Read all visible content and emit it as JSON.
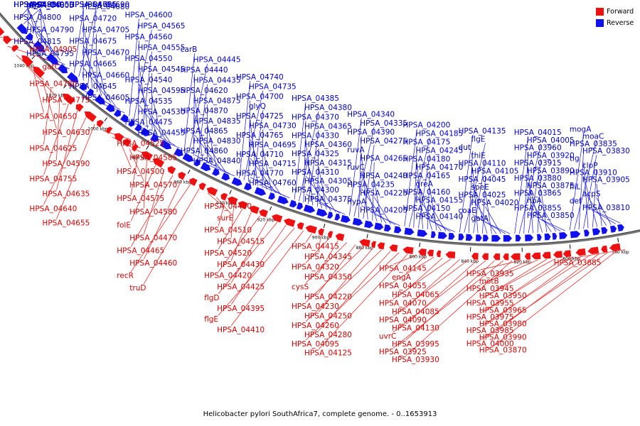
{
  "legend": {
    "forward": {
      "label": "Forward",
      "color": "#ee1111"
    },
    "reverse": {
      "label": "Reverse",
      "color": "#1111ee"
    }
  },
  "caption": "Helicobacter pylori SouthAfrica7, complete genome. - 0..1653913",
  "backbone_color": "#777777",
  "scale_ticks": [
    "1040 kbp",
    "1020 kbp",
    "1000 kbp",
    "980 kbp",
    "960 kbp",
    "940 kbp",
    "920 kbp",
    "900 kbp",
    "880 kbp",
    "860 kbp",
    "840 kbp",
    "820 kbp",
    "800 kbp",
    "780 kbp"
  ],
  "reverse_labels": [
    "HPSA_04985",
    "HPSA_04950",
    "HPSA_04900",
    "glyS",
    "HPSA_04880",
    "gpsA",
    "HPSA_04810",
    "HPSA_04805",
    "HPSA_04800",
    "HPSA_04790",
    "HPSA_04815",
    "HPSA_04795",
    "HPSA_04785",
    "HPSA_04690",
    "HPSA_04685",
    "HPSA_04680",
    "HPSA_04720",
    "HPSA_04705",
    "HPSA_04675",
    "HPSA_04670",
    "HPSA_04665",
    "HPSA_04660",
    "HPSA_04645",
    "HPSA_04605",
    "HPSA_04600",
    "HPSA_04565",
    "HPSA_04560",
    "HPSA_04555",
    "HPSA_04550",
    "HPSA_04545",
    "HPSA_04540",
    "HPSA_04595",
    "HPSA_04535",
    "HPSA_04530",
    "HPSA_04475",
    "HPSA_04455",
    "carB",
    "HPSA_04445",
    "HPSA_04440",
    "HPSA_04435",
    "HPSA_04620",
    "HPSA_04875",
    "HPSA_04870",
    "HPSA_04835",
    "HPSA_04865",
    "HPSA_04830",
    "HPSA_04860",
    "HPSA_04840",
    "HPSA_04740",
    "HPSA_04735",
    "HPSA_04700",
    "glyQ",
    "HPSA_04725",
    "HPSA_04730",
    "HPSA_04765",
    "HPSA_04695",
    "HPSA_04710",
    "HPSA_04715",
    "HPSA_04770",
    "HPSA_04760",
    "HPSA_04385",
    "HPSA_04380",
    "HPSA_04370",
    "HPSA_04365",
    "HPSA_04330",
    "HPSA_04360",
    "HPSA_04325",
    "HPSA_04315",
    "HPSA_04310",
    "HPSA_04305",
    "HPSA_04300",
    "HPSA_04375",
    "HPSA_04340",
    "HPSA_04335",
    "HPSA_04390",
    "HPSA_04275",
    "ruvA",
    "HPSA_04265",
    "ruvC",
    "HPSA_04240",
    "HPSA_04235",
    "HPSA_04225",
    "hypA",
    "HPSA_04205",
    "HPSA_04200",
    "HPSA_04185",
    "HPSA_04175",
    "HPSA_04245",
    "HPSA_04180",
    "HPSA_04170",
    "HPSA_04165",
    "greA",
    "HPSA_04160",
    "HPSA_04155",
    "HPSA_04150",
    "HPSA_04140",
    "HPSA_04135",
    "flgE",
    "dut",
    "thiE",
    "HPSA_04110",
    "HPSA_04105",
    "HPSA_04045",
    "speE",
    "HPSA_04025",
    "HPSA_04020",
    "coaE",
    "gatA",
    "HPSA_04015",
    "HPSA_04005",
    "HPSA_03960",
    "HPSA_03920",
    "HPSA_03915",
    "HPSA_03890",
    "HPSA_03880",
    "HPSA_03875",
    "HPSA_03865",
    "ribA",
    "HPSA_03855",
    "HPSA_03850",
    "mogA",
    "moaC",
    "HPSA_03835",
    "HPSA_03830",
    "tig",
    "clpP",
    "HPSA_03910",
    "HPSA_03905",
    "fliL",
    "acpS",
    "def",
    "HPSA_03810"
  ],
  "forward_labels": [
    "HPSA_04905",
    "gatC",
    "HPSA_04780",
    "HPSA_04775",
    "HPSA_04650",
    "HPSA_04630",
    "HPSA_04625",
    "HPSA_04590",
    "HPSA_04755",
    "HPSA_04635",
    "HPSA_04640",
    "HPSA_04655",
    "HPSA_04525",
    "HPSA_04585",
    "HPSA_04500",
    "HPSA_04570",
    "HPSA_04575",
    "HPSA_04580",
    "folE",
    "HPSA_04470",
    "HPSA_04465",
    "HPSA_04460",
    "recR",
    "truD",
    "HPSA_04490",
    "surE",
    "HPSA_04510",
    "HPSA_04515",
    "HPSA_04520",
    "HPSA_04430",
    "HPSA_04420",
    "HPSA_04425",
    "flgD",
    "HPSA_04395",
    "flgE",
    "HPSA_04410",
    "HPSA_04415",
    "HPSA_04345",
    "HPSA_04320",
    "HPSA_04350",
    "cysS",
    "HPSA_04220",
    "HPSA_04230",
    "HPSA_04250",
    "HPSA_04260",
    "HPSA_04280",
    "HPSA_04095",
    "HPSA_04125",
    "HPSA_04145",
    "engA",
    "HPSA_04055",
    "HPSA_04065",
    "HPSA_04070",
    "HPSA_04085",
    "HPSA_04090",
    "HPSA_04130",
    "uvrC",
    "HPSA_03995",
    "HPSA_03925",
    "HPSA_03930",
    "HPSA_03935",
    "motB",
    "HPSA_03945",
    "HPSA_03950",
    "HPSA_03955",
    "HPSA_03965",
    "HPSA_03975",
    "HPSA_03980",
    "HPSA_03985",
    "HPSA_03990",
    "HPSA_04000",
    "HPSA_03870",
    "HPSA_03885"
  ]
}
